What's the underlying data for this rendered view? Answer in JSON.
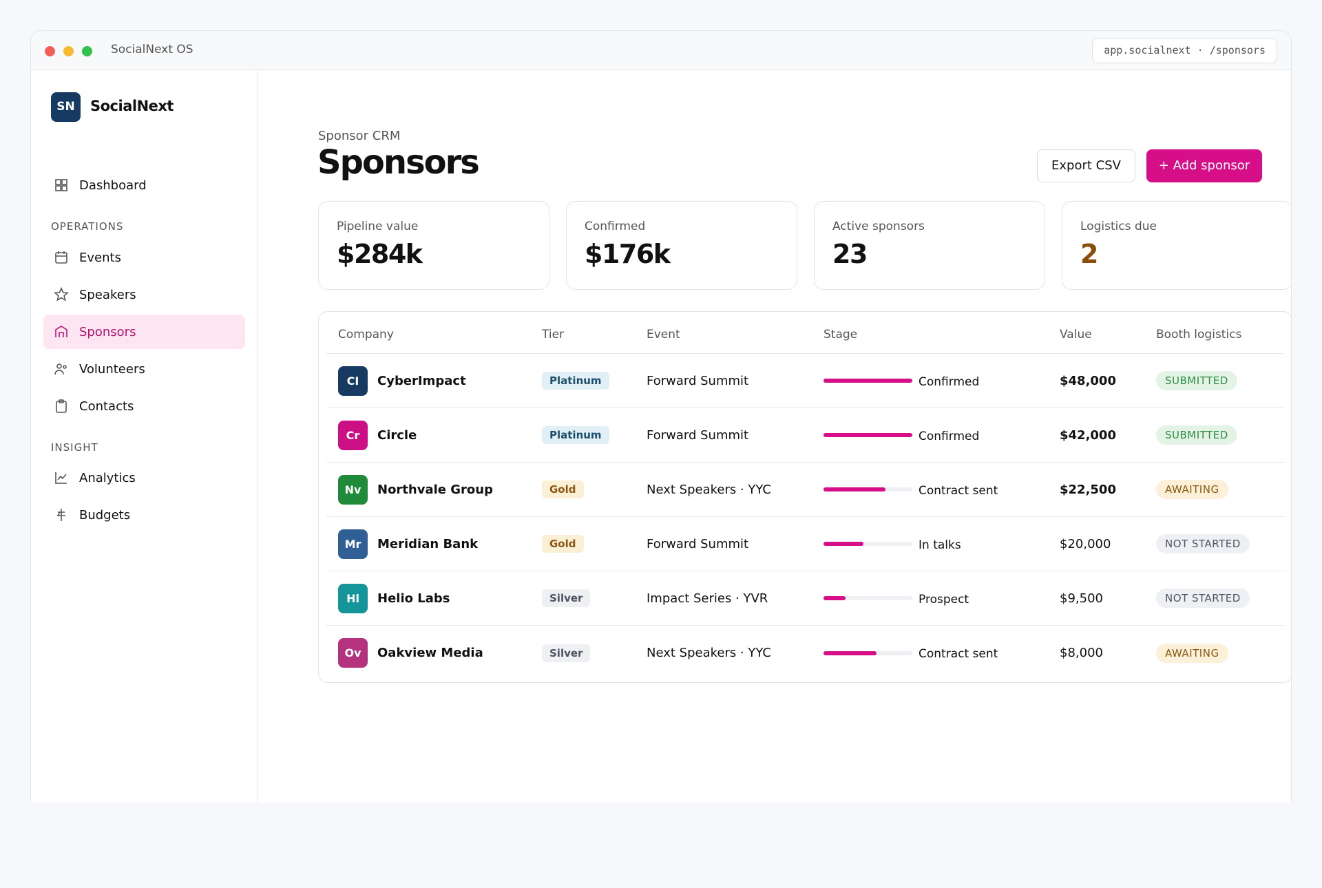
{
  "window": {
    "title": "SocialNext OS",
    "url": "app.socialnext · /sponsors"
  },
  "sidebar": {
    "logo": "SN",
    "brand": "SocialNext",
    "top": "Dashboard",
    "sections": [
      {
        "heading": "OPERATIONS",
        "items": [
          "Events",
          "Speakers",
          "Sponsors",
          "Volunteers",
          "Contacts"
        ]
      },
      {
        "heading": "INSIGHT",
        "items": [
          "Analytics",
          "Budgets"
        ]
      }
    ]
  },
  "header": {
    "eyebrow": "Sponsor CRM",
    "title": "Sponsors",
    "export": "Export CSV",
    "add": "+ Add sponsor"
  },
  "stats": [
    {
      "label": "Pipeline value",
      "value": "$284k"
    },
    {
      "label": "Confirmed",
      "value": "$176k"
    },
    {
      "label": "Active sponsors",
      "value": "23"
    },
    {
      "label": "Logistics due",
      "value": "2"
    }
  ],
  "table": {
    "columns": [
      "Company",
      "Tier",
      "Event",
      "Stage",
      "Value",
      "Booth logistics"
    ],
    "rows": [
      {
        "initials": "CI",
        "color": "#173a63",
        "company": "CyberImpact",
        "tier": "Platinum",
        "event": "Forward Summit",
        "stage": "Confirmed",
        "progress": 100,
        "value": "$48,000",
        "logistics": "SUBMITTED"
      },
      {
        "initials": "Cr",
        "color": "#cc0f84",
        "company": "Circle",
        "tier": "Platinum",
        "event": "Forward Summit",
        "stage": "Confirmed",
        "progress": 100,
        "value": "$42,000",
        "logistics": "SUBMITTED"
      },
      {
        "initials": "Nv",
        "color": "#1f8a3a",
        "company": "Northvale Group",
        "tier": "Gold",
        "event": "Next Speakers · YYC",
        "stage": "Contract sent",
        "progress": 70,
        "value": "$22,500",
        "logistics": "AWAITING"
      },
      {
        "initials": "Mr",
        "color": "#2f5f95",
        "company": "Meridian Bank",
        "tier": "Gold",
        "event": "Forward Summit",
        "stage": "In talks",
        "progress": 45,
        "value": "$20,000",
        "logistics": "NOT STARTED"
      },
      {
        "initials": "Hl",
        "color": "#14959a",
        "company": "Helio Labs",
        "tier": "Silver",
        "event": "Impact Series · YVR",
        "stage": "Prospect",
        "progress": 25,
        "value": "$9,500",
        "logistics": "NOT STARTED"
      },
      {
        "initials": "Ov",
        "color": "#b5327f",
        "company": "Oakview Media",
        "tier": "Silver",
        "event": "Next Speakers · YYC",
        "stage": "Contract sent",
        "progress": 60,
        "value": "$8,000",
        "logistics": "AWAITING"
      }
    ]
  }
}
